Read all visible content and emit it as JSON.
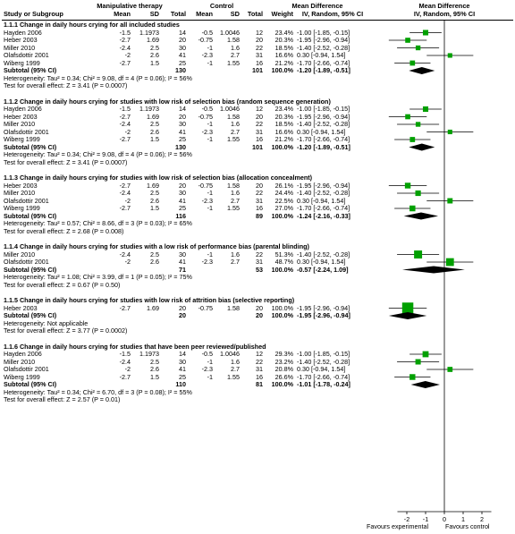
{
  "header": {
    "study": "Study or Subgroup",
    "group1": "Manipulative therapy",
    "group2": "Control",
    "mean": "Mean",
    "sd": "SD",
    "total": "Total",
    "weight": "Weight",
    "md_title": "Mean Difference",
    "md_method": "IV, Random, 95% CI",
    "md_title_plot": "Mean Difference",
    "md_method_plot": "IV, Random, 95% CI"
  },
  "axis": {
    "ticks": [
      "-2",
      "-1",
      "0",
      "1",
      "2"
    ],
    "favours_left": "Favours experimental",
    "favours_right": "Favours control"
  },
  "chart_data": {
    "type": "forest",
    "xlim": [
      -2.5,
      2.5
    ],
    "xticks": [
      -2,
      -1,
      0,
      1,
      2
    ],
    "null_line": 0,
    "colors": {
      "point": "#00a000",
      "summary": "#000000"
    },
    "subgroups": [
      {
        "title": "1.1.1 Change in daily hours crying for all included studies",
        "studies": [
          {
            "name": "Hayden 2006",
            "m1": "-1.5",
            "sd1": "1.1973",
            "n1": "14",
            "m2": "-0.5",
            "sd2": "1.0046",
            "n2": "12",
            "weight": "23.4%",
            "md_text": "-1.00 [-1.85, -0.15]",
            "md": -1.0,
            "lo": -1.85,
            "hi": -0.15,
            "w": 23.4
          },
          {
            "name": "Heber 2003",
            "m1": "-2.7",
            "sd1": "1.69",
            "n1": "20",
            "m2": "-0.75",
            "sd2": "1.58",
            "n2": "20",
            "weight": "20.3%",
            "md_text": "-1.95 [-2.96, -0.94]",
            "md": -1.95,
            "lo": -2.96,
            "hi": -0.94,
            "w": 20.3
          },
          {
            "name": "Miller 2010",
            "m1": "-2.4",
            "sd1": "2.5",
            "n1": "30",
            "m2": "-1",
            "sd2": "1.6",
            "n2": "22",
            "weight": "18.5%",
            "md_text": "-1.40 [-2.52, -0.28]",
            "md": -1.4,
            "lo": -2.52,
            "hi": -0.28,
            "w": 18.5
          },
          {
            "name": "Olafsdottir 2001",
            "m1": "-2",
            "sd1": "2.6",
            "n1": "41",
            "m2": "-2.3",
            "sd2": "2.7",
            "n2": "31",
            "weight": "16.6%",
            "md_text": "0.30 [-0.94, 1.54]",
            "md": 0.3,
            "lo": -0.94,
            "hi": 1.54,
            "w": 16.6
          },
          {
            "name": "Wiberg 1999",
            "m1": "-2.7",
            "sd1": "1.5",
            "n1": "25",
            "m2": "-1",
            "sd2": "1.55",
            "n2": "16",
            "weight": "21.2%",
            "md_text": "-1.70 [-2.66, -0.74]",
            "md": -1.7,
            "lo": -2.66,
            "hi": -0.74,
            "w": 21.2
          }
        ],
        "subtotal": {
          "label": "Subtotal (95% CI)",
          "n1": "130",
          "n2": "101",
          "weight": "100.0%",
          "md_text": "-1.20 [-1.89, -0.51]",
          "md": -1.2,
          "lo": -1.89,
          "hi": -0.51
        },
        "heterogeneity": "Heterogeneity: Tau² = 0.34; Chi² = 9.08, df = 4 (P = 0.06); I² = 56%",
        "overall": "Test for overall effect: Z = 3.41 (P = 0.0007)"
      },
      {
        "title": "1.1.2 Change in daily hours crying for studies with low risk of selection bias (random sequence generation)",
        "studies": [
          {
            "name": "Hayden 2006",
            "m1": "-1.5",
            "sd1": "1.1973",
            "n1": "14",
            "m2": "-0.5",
            "sd2": "1.0046",
            "n2": "12",
            "weight": "23.4%",
            "md_text": "-1.00 [-1.85, -0.15]",
            "md": -1.0,
            "lo": -1.85,
            "hi": -0.15,
            "w": 23.4
          },
          {
            "name": "Heber 2003",
            "m1": "-2.7",
            "sd1": "1.69",
            "n1": "20",
            "m2": "-0.75",
            "sd2": "1.58",
            "n2": "20",
            "weight": "20.3%",
            "md_text": "-1.95 [-2.96, -0.94]",
            "md": -1.95,
            "lo": -2.96,
            "hi": -0.94,
            "w": 20.3
          },
          {
            "name": "Miller 2010",
            "m1": "-2.4",
            "sd1": "2.5",
            "n1": "30",
            "m2": "-1",
            "sd2": "1.6",
            "n2": "22",
            "weight": "18.5%",
            "md_text": "-1.40 [-2.52, -0.28]",
            "md": -1.4,
            "lo": -2.52,
            "hi": -0.28,
            "w": 18.5
          },
          {
            "name": "Olafsdottir 2001",
            "m1": "-2",
            "sd1": "2.6",
            "n1": "41",
            "m2": "-2.3",
            "sd2": "2.7",
            "n2": "31",
            "weight": "16.6%",
            "md_text": "0.30 [-0.94, 1.54]",
            "md": 0.3,
            "lo": -0.94,
            "hi": 1.54,
            "w": 16.6
          },
          {
            "name": "Wiberg 1999",
            "m1": "-2.7",
            "sd1": "1.5",
            "n1": "25",
            "m2": "-1",
            "sd2": "1.55",
            "n2": "16",
            "weight": "21.2%",
            "md_text": "-1.70 [-2.66, -0.74]",
            "md": -1.7,
            "lo": -2.66,
            "hi": -0.74,
            "w": 21.2
          }
        ],
        "subtotal": {
          "label": "Subtotal (95% CI)",
          "n1": "130",
          "n2": "101",
          "weight": "100.0%",
          "md_text": "-1.20 [-1.89, -0.51]",
          "md": -1.2,
          "lo": -1.89,
          "hi": -0.51
        },
        "heterogeneity": "Heterogeneity: Tau² = 0.34; Chi² = 9.08, df = 4 (P = 0.06); I² = 56%",
        "overall": "Test for overall effect: Z = 3.41 (P = 0.0007)"
      },
      {
        "title": "1.1.3 Change in daily hours crying for studies with low risk of selection bias (allocation concealment)",
        "studies": [
          {
            "name": "Heber 2003",
            "m1": "-2.7",
            "sd1": "1.69",
            "n1": "20",
            "m2": "-0.75",
            "sd2": "1.58",
            "n2": "20",
            "weight": "26.1%",
            "md_text": "-1.95 [-2.96, -0.94]",
            "md": -1.95,
            "lo": -2.96,
            "hi": -0.94,
            "w": 26.1
          },
          {
            "name": "Miller 2010",
            "m1": "-2.4",
            "sd1": "2.5",
            "n1": "30",
            "m2": "-1",
            "sd2": "1.6",
            "n2": "22",
            "weight": "24.4%",
            "md_text": "-1.40 [-2.52, -0.28]",
            "md": -1.4,
            "lo": -2.52,
            "hi": -0.28,
            "w": 24.4
          },
          {
            "name": "Olafsdottir 2001",
            "m1": "-2",
            "sd1": "2.6",
            "n1": "41",
            "m2": "-2.3",
            "sd2": "2.7",
            "n2": "31",
            "weight": "22.5%",
            "md_text": "0.30 [-0.94, 1.54]",
            "md": 0.3,
            "lo": -0.94,
            "hi": 1.54,
            "w": 22.5
          },
          {
            "name": "Wiberg 1999",
            "m1": "-2.7",
            "sd1": "1.5",
            "n1": "25",
            "m2": "-1",
            "sd2": "1.55",
            "n2": "16",
            "weight": "27.0%",
            "md_text": "-1.70 [-2.66, -0.74]",
            "md": -1.7,
            "lo": -2.66,
            "hi": -0.74,
            "w": 27.0
          }
        ],
        "subtotal": {
          "label": "Subtotal (95% CI)",
          "n1": "116",
          "n2": "89",
          "weight": "100.0%",
          "md_text": "-1.24 [-2.16, -0.33]",
          "md": -1.24,
          "lo": -2.16,
          "hi": -0.33
        },
        "heterogeneity": "Heterogeneity: Tau² = 0.57; Chi² = 8.66, df = 3 (P = 0.03); I² = 65%",
        "overall": "Test for overall effect: Z = 2.68 (P = 0.008)"
      },
      {
        "title": "1.1.4 Change in daily hours crying for studies with a low risk of performance bias (parental blinding)",
        "studies": [
          {
            "name": "Miller 2010",
            "m1": "-2.4",
            "sd1": "2.5",
            "n1": "30",
            "m2": "-1",
            "sd2": "1.6",
            "n2": "22",
            "weight": "51.3%",
            "md_text": "-1.40 [-2.52, -0.28]",
            "md": -1.4,
            "lo": -2.52,
            "hi": -0.28,
            "w": 51.3
          },
          {
            "name": "Olafsdottir 2001",
            "m1": "-2",
            "sd1": "2.6",
            "n1": "41",
            "m2": "-2.3",
            "sd2": "2.7",
            "n2": "31",
            "weight": "48.7%",
            "md_text": "0.30 [-0.94, 1.54]",
            "md": 0.3,
            "lo": -0.94,
            "hi": 1.54,
            "w": 48.7
          }
        ],
        "subtotal": {
          "label": "Subtotal (95% CI)",
          "n1": "71",
          "n2": "53",
          "weight": "100.0%",
          "md_text": "-0.57 [-2.24, 1.09]",
          "md": -0.57,
          "lo": -2.24,
          "hi": 1.09
        },
        "heterogeneity": "Heterogeneity: Tau² = 1.08; Chi² = 3.99, df = 1 (P = 0.05); I² = 75%",
        "overall": "Test for overall effect: Z = 0.67 (P = 0.50)"
      },
      {
        "title": "1.1.5 Change in daily hours crying for studies with low risk of attrition bias (selective reporting)",
        "studies": [
          {
            "name": "Heber 2003",
            "m1": "-2.7",
            "sd1": "1.69",
            "n1": "20",
            "m2": "-0.75",
            "sd2": "1.58",
            "n2": "20",
            "weight": "100.0%",
            "md_text": "-1.95 [-2.96, -0.94]",
            "md": -1.95,
            "lo": -2.96,
            "hi": -0.94,
            "w": 100.0
          }
        ],
        "subtotal": {
          "label": "Subtotal (95% CI)",
          "n1": "20",
          "n2": "20",
          "weight": "100.0%",
          "md_text": "-1.95 [-2.96, -0.94]",
          "md": -1.95,
          "lo": -2.96,
          "hi": -0.94
        },
        "heterogeneity": "Heterogeneity: Not applicable",
        "overall": "Test for overall effect: Z = 3.77 (P = 0.0002)"
      },
      {
        "title": "1.1.6 Change in daily hours crying for studies that have been peer reviewed/published",
        "studies": [
          {
            "name": "Hayden 2006",
            "m1": "-1.5",
            "sd1": "1.1973",
            "n1": "14",
            "m2": "-0.5",
            "sd2": "1.0046",
            "n2": "12",
            "weight": "29.3%",
            "md_text": "-1.00 [-1.85, -0.15]",
            "md": -1.0,
            "lo": -1.85,
            "hi": -0.15,
            "w": 29.3
          },
          {
            "name": "Miller 2010",
            "m1": "-2.4",
            "sd1": "2.5",
            "n1": "30",
            "m2": "-1",
            "sd2": "1.6",
            "n2": "22",
            "weight": "23.2%",
            "md_text": "-1.40 [-2.52, -0.28]",
            "md": -1.4,
            "lo": -2.52,
            "hi": -0.28,
            "w": 23.2
          },
          {
            "name": "Olafsdottir 2001",
            "m1": "-2",
            "sd1": "2.6",
            "n1": "41",
            "m2": "-2.3",
            "sd2": "2.7",
            "n2": "31",
            "weight": "20.8%",
            "md_text": "0.30 [-0.94, 1.54]",
            "md": 0.3,
            "lo": -0.94,
            "hi": 1.54,
            "w": 20.8
          },
          {
            "name": "Wiberg 1999",
            "m1": "-2.7",
            "sd1": "1.5",
            "n1": "25",
            "m2": "-1",
            "sd2": "1.55",
            "n2": "16",
            "weight": "26.6%",
            "md_text": "-1.70 [-2.66, -0.74]",
            "md": -1.7,
            "lo": -2.66,
            "hi": -0.74,
            "w": 26.6
          }
        ],
        "subtotal": {
          "label": "Subtotal (95% CI)",
          "n1": "110",
          "n2": "81",
          "weight": "100.0%",
          "md_text": "-1.01 [-1.78, -0.24]",
          "md": -1.01,
          "lo": -1.78,
          "hi": -0.24
        },
        "heterogeneity": "Heterogeneity: Tau² = 0.34; Chi² = 6.70, df = 3 (P = 0.08); I² = 55%",
        "overall": "Test for overall effect: Z = 2.57 (P = 0.01)"
      }
    ]
  }
}
